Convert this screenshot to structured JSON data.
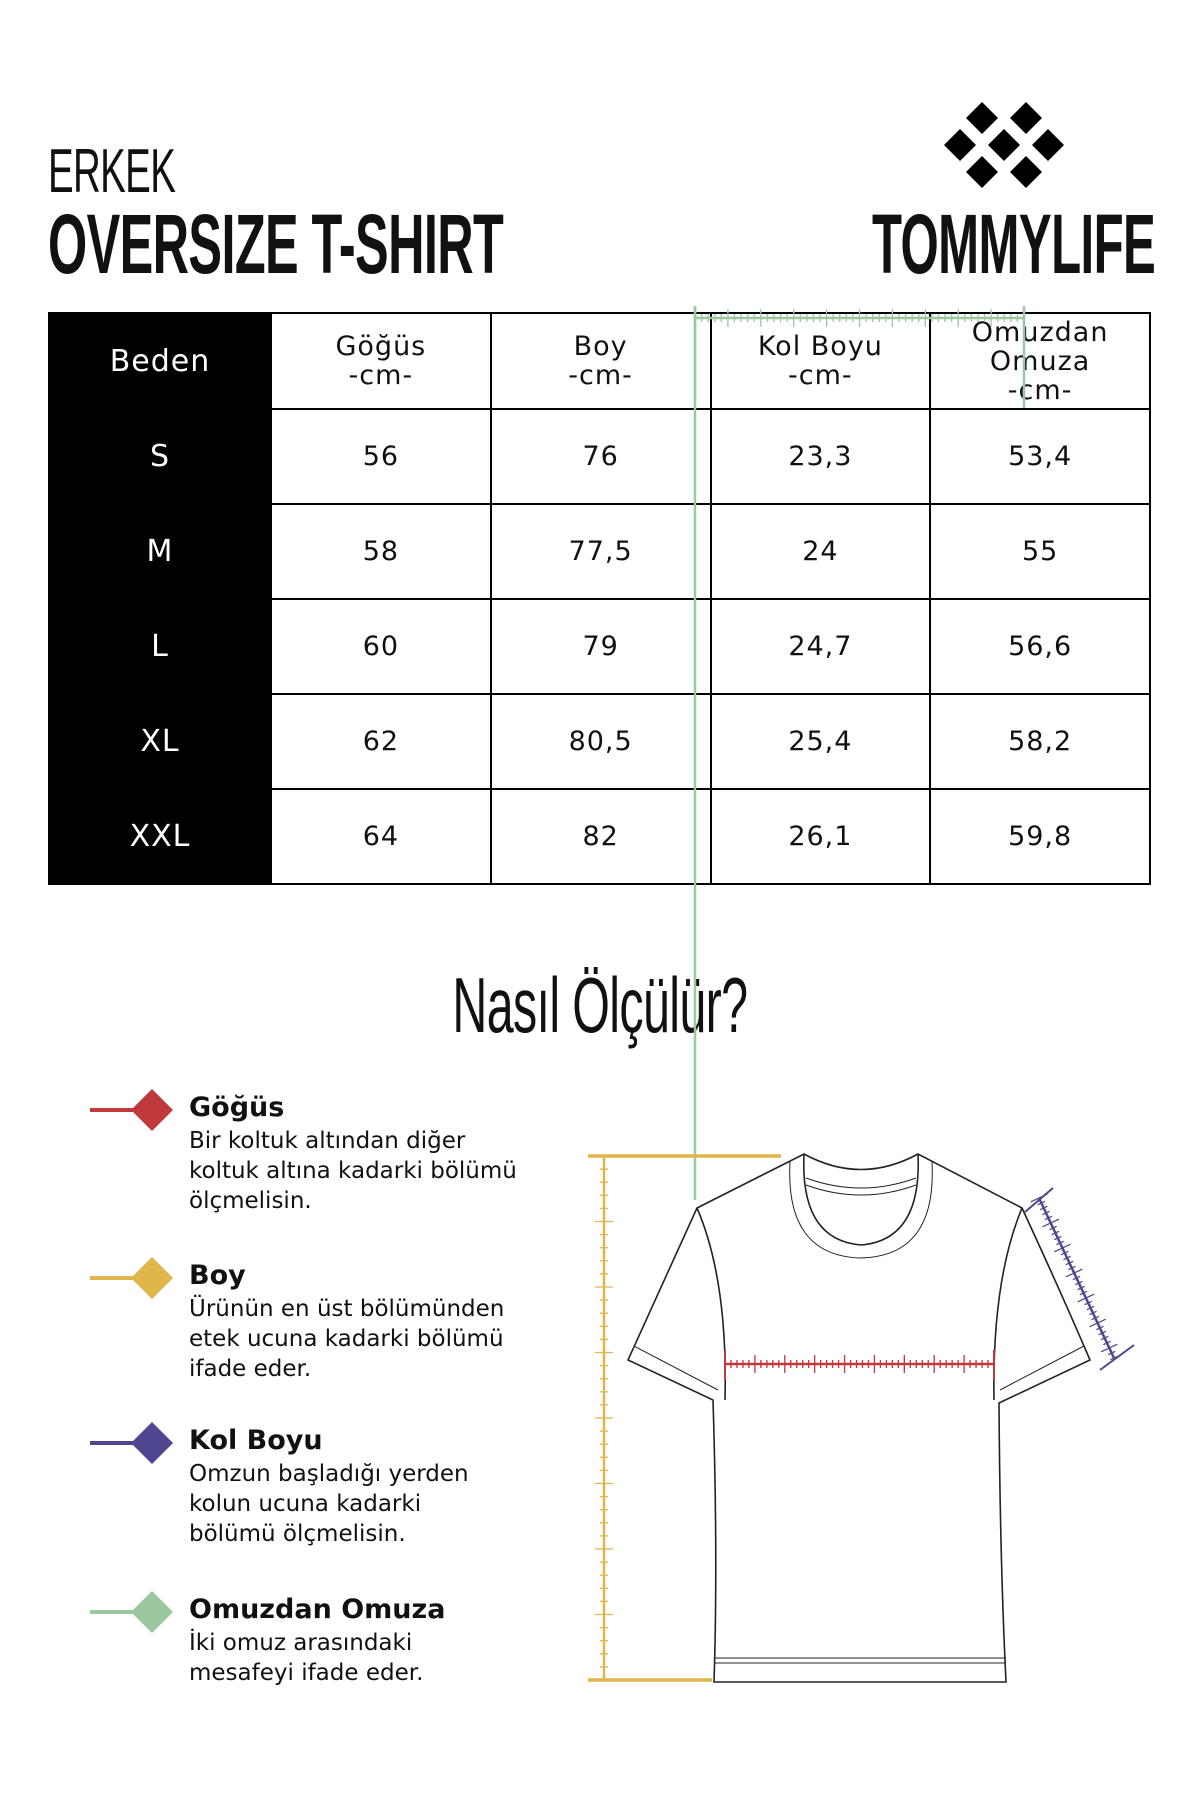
{
  "header": {
    "subtitle": "ERKEK",
    "title": "OVERSIZE T-SHIRT",
    "brand": "TOMMYLIFE"
  },
  "table": {
    "headers": [
      {
        "lines": [
          "Beden"
        ]
      },
      {
        "lines": [
          "Göğüs",
          "-cm-"
        ]
      },
      {
        "lines": [
          "Boy",
          "-cm-"
        ]
      },
      {
        "lines": [
          "Kol Boyu",
          "-cm-"
        ]
      },
      {
        "lines": [
          "Omuzdan",
          "Omuza",
          "-cm-"
        ]
      }
    ],
    "rows": [
      [
        "S",
        "56",
        "76",
        "23,3",
        "53,4"
      ],
      [
        "M",
        "58",
        "77,5",
        "24",
        "55"
      ],
      [
        "L",
        "60",
        "79",
        "24,7",
        "56,6"
      ],
      [
        "XL",
        "62",
        "80,5",
        "25,4",
        "58,2"
      ],
      [
        "XXL",
        "64",
        "82",
        "26,1",
        "59,8"
      ]
    ]
  },
  "howto": {
    "title": "Nasıl Ölçülür?"
  },
  "legend": [
    {
      "title": "Göğüs",
      "lines": [
        "Bir koltuk altından diğer",
        "koltuk altına kadarki bölümü",
        "ölçmelisin."
      ],
      "color": "#c0393b"
    },
    {
      "title": "Boy",
      "lines": [
        "Ürünün en üst bölümünden",
        "etek ucuna kadarki bölümü",
        "ifade eder."
      ],
      "color": "#e0b54a"
    },
    {
      "title": "Kol Boyu",
      "lines": [
        "Omzun başladığı yerden",
        "kolun ucuna kadarki",
        "bölümü ölçmelisin."
      ],
      "color": "#4f4690"
    },
    {
      "title": "Omuzdan Omuza",
      "lines": [
        "İki omuz arasındaki",
        "mesafeyi ifade eder."
      ],
      "color": "#9cc8a0"
    }
  ]
}
